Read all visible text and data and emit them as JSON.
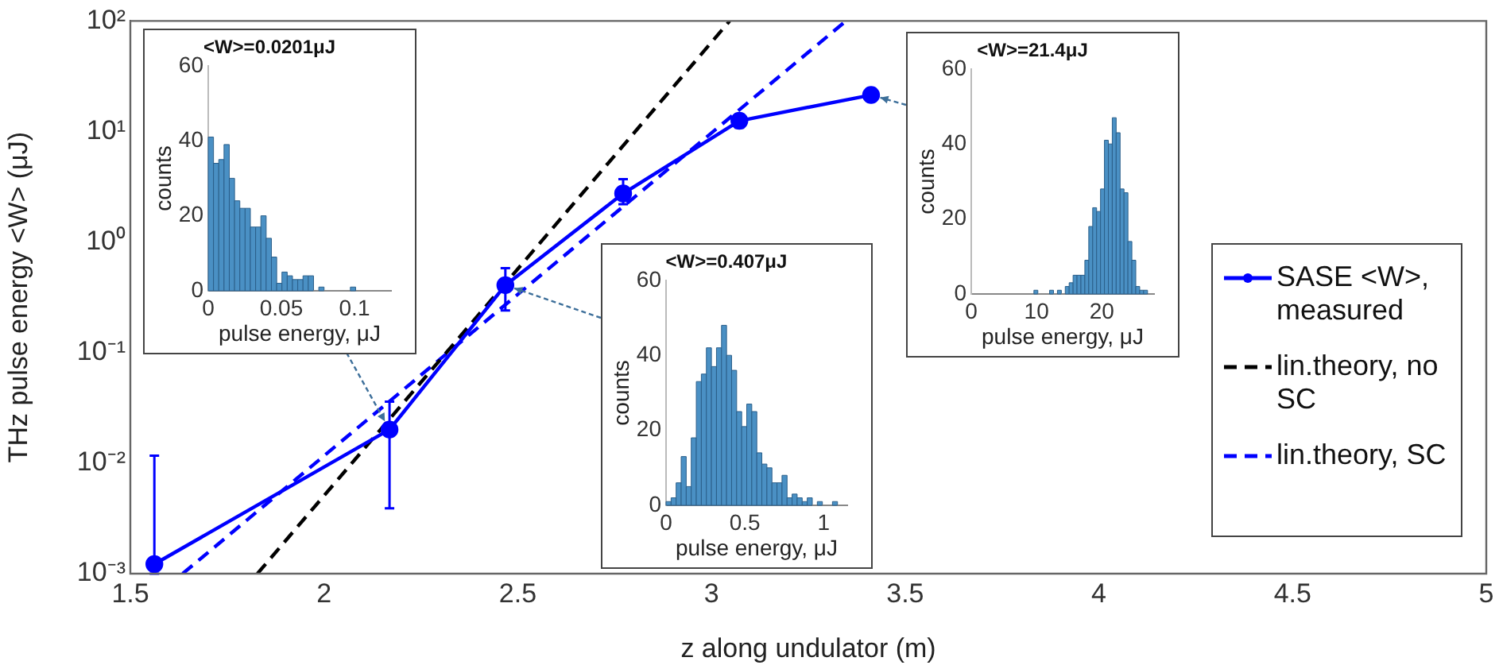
{
  "chart_data": [
    {
      "type": "line",
      "xlabel": "z along undulator (m)",
      "ylabel": "THz pulse energy <W> (μJ)",
      "log": "y",
      "xlim": [
        1.5,
        5
      ],
      "xticks": [
        1.5,
        2,
        2.5,
        3,
        3.5,
        4,
        4.5,
        5
      ],
      "ylim": [
        0.001,
        100
      ],
      "yticks": [
        {
          "value": 0.001,
          "label": "10⁻³"
        },
        {
          "value": 0.01,
          "label": "10⁻²"
        },
        {
          "value": 0.1,
          "label": "10⁻¹"
        },
        {
          "value": 1,
          "label": "10⁰"
        },
        {
          "value": 10,
          "label": "10¹"
        },
        {
          "value": 100,
          "label": "10²"
        }
      ],
      "grid": false,
      "legend": "right",
      "series": [
        {
          "name": "SASE <W>, measured",
          "color": "#0000ff",
          "marker": "circle",
          "line_style": "solid",
          "x": [
            1.562,
            2.169,
            2.468,
            2.772,
            3.072,
            3.412
          ],
          "values": [
            0.00122,
            0.0201,
            0.407,
            2.75,
            12.5,
            21.4
          ],
          "errors": [
            [
              0.001,
              0.0117
            ],
            [
              0.0039,
              0.036
            ],
            [
              0.24,
              0.58
            ],
            [
              2.2,
              3.7
            ],
            [
              10.8,
              14.3
            ],
            null
          ]
        },
        {
          "name": "lin.theory, no SC",
          "color": "#000000",
          "marker": "none",
          "line_style": "dashed",
          "x": [
            1.828,
            3.047
          ],
          "values": [
            0.001,
            100
          ]
        },
        {
          "name": "lin.theory, SC",
          "color": "#0000ff",
          "marker": "none",
          "line_style": "dashed",
          "x": [
            1.635,
            3.347
          ],
          "values": [
            0.001,
            100
          ]
        }
      ]
    },
    {
      "type": "histogram",
      "title": "<W>=0.0201μJ",
      "xlabel": "pulse energy, μJ",
      "ylabel": "counts",
      "color": "#4a90c4",
      "xlim": [
        0,
        0.125
      ],
      "xticks": [
        0,
        0.05,
        0.1
      ],
      "ylim": [
        0,
        60
      ],
      "yticks": [
        0,
        20,
        40,
        60
      ],
      "grid": false,
      "bins": [
        0,
        0.0036,
        0.0072,
        0.0108,
        0.0144,
        0.018,
        0.0216,
        0.0252,
        0.0288,
        0.0324,
        0.036,
        0.0396,
        0.0432,
        0.0468,
        0.0504,
        0.054,
        0.0576,
        0.0612,
        0.0648,
        0.0684,
        0.072,
        0.0756,
        0.0792,
        0.0828,
        0.0864,
        0.09,
        0.0936,
        0.0972,
        0.1008
      ],
      "values": [
        41,
        34,
        35,
        39,
        30,
        24,
        22,
        22,
        17,
        17,
        20,
        14,
        9,
        2,
        5,
        4,
        3,
        3,
        4,
        4,
        0,
        1,
        0,
        0,
        0,
        0,
        0,
        1
      ]
    },
    {
      "type": "histogram",
      "title": "<W>=0.407μJ",
      "xlabel": "pulse energy, μJ",
      "ylabel": "counts",
      "color": "#4a90c4",
      "xlim": [
        0,
        1.15
      ],
      "xticks": [
        0,
        0.5,
        1
      ],
      "ylim": [
        0,
        60
      ],
      "yticks": [
        0,
        20,
        40,
        60
      ],
      "grid": false,
      "bins": [
        0,
        0.032,
        0.064,
        0.096,
        0.128,
        0.16,
        0.192,
        0.224,
        0.256,
        0.288,
        0.32,
        0.352,
        0.384,
        0.416,
        0.448,
        0.48,
        0.512,
        0.544,
        0.576,
        0.608,
        0.64,
        0.672,
        0.704,
        0.736,
        0.768,
        0.8,
        0.832,
        0.864,
        0.896,
        0.928,
        0.96,
        0.992,
        1.024,
        1.056,
        1.088,
        1.12
      ],
      "values": [
        1,
        2,
        6,
        13,
        5,
        18,
        33,
        35,
        42,
        37,
        42,
        48,
        40,
        36,
        25,
        21,
        27,
        25,
        14,
        11,
        10,
        6,
        6,
        8,
        2,
        3,
        2,
        1,
        2,
        0,
        1,
        0,
        0,
        1,
        0
      ]
    },
    {
      "type": "histogram",
      "title": "<W>=21.4μJ",
      "xlabel": "pulse energy, μJ",
      "ylabel": "counts",
      "color": "#4a90c4",
      "xlim": [
        0,
        28
      ],
      "xticks": [
        0,
        10,
        20
      ],
      "ylim": [
        0,
        60
      ],
      "yticks": [
        0,
        20,
        40,
        60
      ],
      "grid": false,
      "bins": [
        9.6,
        10.2,
        10.8,
        11.4,
        12,
        12.6,
        13.2,
        13.8,
        14.4,
        15,
        15.6,
        16.2,
        16.8,
        17.4,
        18,
        18.6,
        19.2,
        19.8,
        20.4,
        21,
        21.6,
        22.2,
        22.8,
        23.4,
        24,
        24.6,
        25.2,
        25.8,
        26.4,
        27
      ],
      "values": [
        1,
        0,
        0,
        0,
        1,
        0,
        1,
        0,
        2,
        3,
        5,
        5,
        5,
        9,
        18,
        23,
        22,
        28,
        41,
        40,
        47,
        43,
        28,
        27,
        14,
        9,
        2,
        1,
        1
      ]
    }
  ]
}
